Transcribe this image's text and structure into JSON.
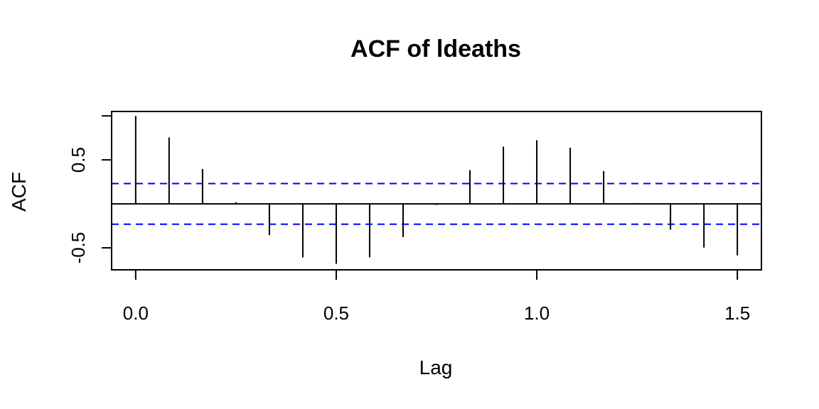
{
  "chart_data": {
    "type": "bar",
    "title": "ACF of ldeaths",
    "xlabel": "Lag",
    "ylabel": "ACF",
    "xlim": [
      -0.06,
      1.56
    ],
    "ylim": [
      -0.75,
      1.05
    ],
    "x_ticks": [
      0.0,
      0.5,
      1.0,
      1.5
    ],
    "x_tick_labels": [
      "0.0",
      "0.5",
      "1.0",
      "1.5"
    ],
    "y_ticks": [
      -0.5,
      0.5,
      1.0
    ],
    "y_tick_labels": [
      "-0.5",
      "0.5",
      ""
    ],
    "grid": false,
    "lags": [
      0.0,
      0.0833,
      0.1667,
      0.25,
      0.3333,
      0.4167,
      0.5,
      0.5833,
      0.6667,
      0.75,
      0.8333,
      0.9167,
      1.0,
      1.0833,
      1.1667,
      1.25,
      1.3333,
      1.4167,
      1.5
    ],
    "acf": [
      1.0,
      0.755,
      0.396,
      0.019,
      -0.355,
      -0.609,
      -0.681,
      -0.608,
      -0.378,
      -0.013,
      0.383,
      0.65,
      0.723,
      0.638,
      0.372,
      0.009,
      -0.293,
      -0.497,
      -0.586
    ],
    "confidence_bound": 0.231,
    "bar_color": "#000000",
    "ci_color": "#0000ff"
  }
}
